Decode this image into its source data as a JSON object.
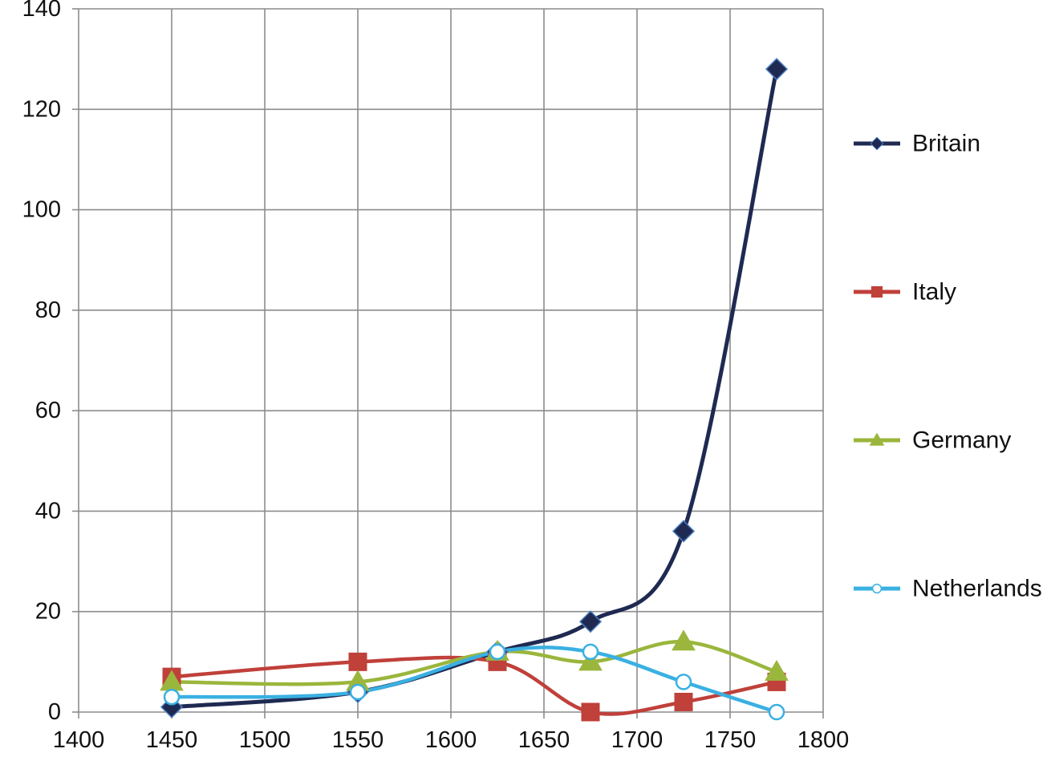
{
  "chart_data": {
    "type": "line",
    "smooth": true,
    "title": "",
    "xlabel": "",
    "ylabel": "",
    "xlim": [
      1400,
      1800
    ],
    "ylim": [
      0,
      140
    ],
    "x_ticks": [
      1400,
      1450,
      1500,
      1550,
      1600,
      1650,
      1700,
      1750,
      1800
    ],
    "y_ticks": [
      0,
      20,
      40,
      60,
      80,
      100,
      120,
      140
    ],
    "x_tick_labels": [
      "1400",
      "1450",
      "1500",
      "1550",
      "1600",
      "1650",
      "1700",
      "1750",
      "1800"
    ],
    "y_tick_labels": [
      "0",
      "20",
      "40",
      "60",
      "80",
      "100",
      "120",
      "140"
    ],
    "grid": true,
    "legend_position": "right",
    "series": [
      {
        "name": "Britain",
        "color": "#1f2a52",
        "marker": "diamond",
        "points": [
          [
            1450,
            1
          ],
          [
            1550,
            4
          ],
          [
            1625,
            12
          ],
          [
            1675,
            18
          ],
          [
            1725,
            36
          ],
          [
            1775,
            128
          ]
        ]
      },
      {
        "name": "Italy",
        "color": "#c0403a",
        "marker": "square",
        "points": [
          [
            1450,
            7
          ],
          [
            1550,
            10
          ],
          [
            1625,
            10
          ],
          [
            1675,
            0
          ],
          [
            1725,
            2
          ],
          [
            1775,
            6
          ]
        ]
      },
      {
        "name": "Germany",
        "color": "#9ab63c",
        "marker": "triangle",
        "points": [
          [
            1450,
            6
          ],
          [
            1550,
            6
          ],
          [
            1625,
            12
          ],
          [
            1675,
            10
          ],
          [
            1725,
            14
          ],
          [
            1775,
            8
          ]
        ]
      },
      {
        "name": "Netherlands",
        "color": "#3ab0e2",
        "marker": "circle-open",
        "points": [
          [
            1450,
            3
          ],
          [
            1550,
            4
          ],
          [
            1625,
            12
          ],
          [
            1675,
            12
          ],
          [
            1725,
            6
          ],
          [
            1775,
            0
          ]
        ]
      }
    ]
  }
}
